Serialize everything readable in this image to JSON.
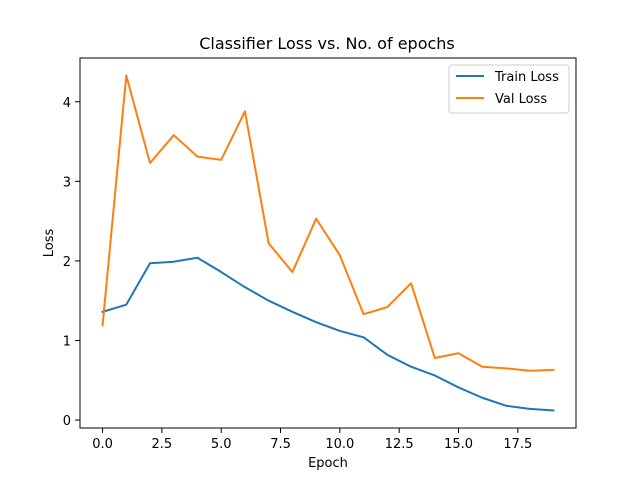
{
  "chart_data": {
    "type": "line",
    "title": "Classifier Loss vs. No. of epochs",
    "xlabel": "Epoch",
    "ylabel": "Loss",
    "xlim": [
      -0.95,
      19.95
    ],
    "ylim": [
      -0.1,
      4.55
    ],
    "xticks": [
      0,
      2.5,
      5,
      7.5,
      10,
      12.5,
      15,
      17.5
    ],
    "xtick_labels": [
      "0.0",
      "2.5",
      "5.0",
      "7.5",
      "10.0",
      "12.5",
      "15.0",
      "17.5"
    ],
    "yticks": [
      0,
      1,
      2,
      3,
      4
    ],
    "ytick_labels": [
      "0",
      "1",
      "2",
      "3",
      "4"
    ],
    "grid": false,
    "legend_position": "top-right",
    "x": [
      0,
      1,
      2,
      3,
      4,
      5,
      6,
      7,
      8,
      9,
      10,
      11,
      12,
      13,
      14,
      15,
      16,
      17,
      18,
      19
    ],
    "series": [
      {
        "name": "Train Loss",
        "color": "#1f77b4",
        "values": [
          1.36,
          1.45,
          1.97,
          1.99,
          2.04,
          1.86,
          1.67,
          1.5,
          1.36,
          1.23,
          1.12,
          1.04,
          0.82,
          0.67,
          0.56,
          0.41,
          0.28,
          0.18,
          0.14,
          0.12
        ]
      },
      {
        "name": "Val Loss",
        "color": "#ff7f0e",
        "values": [
          1.19,
          4.33,
          3.23,
          3.58,
          3.31,
          3.27,
          3.88,
          2.22,
          1.86,
          2.53,
          2.07,
          1.33,
          1.42,
          1.72,
          0.78,
          0.84,
          0.67,
          0.65,
          0.62,
          0.63
        ]
      }
    ]
  }
}
